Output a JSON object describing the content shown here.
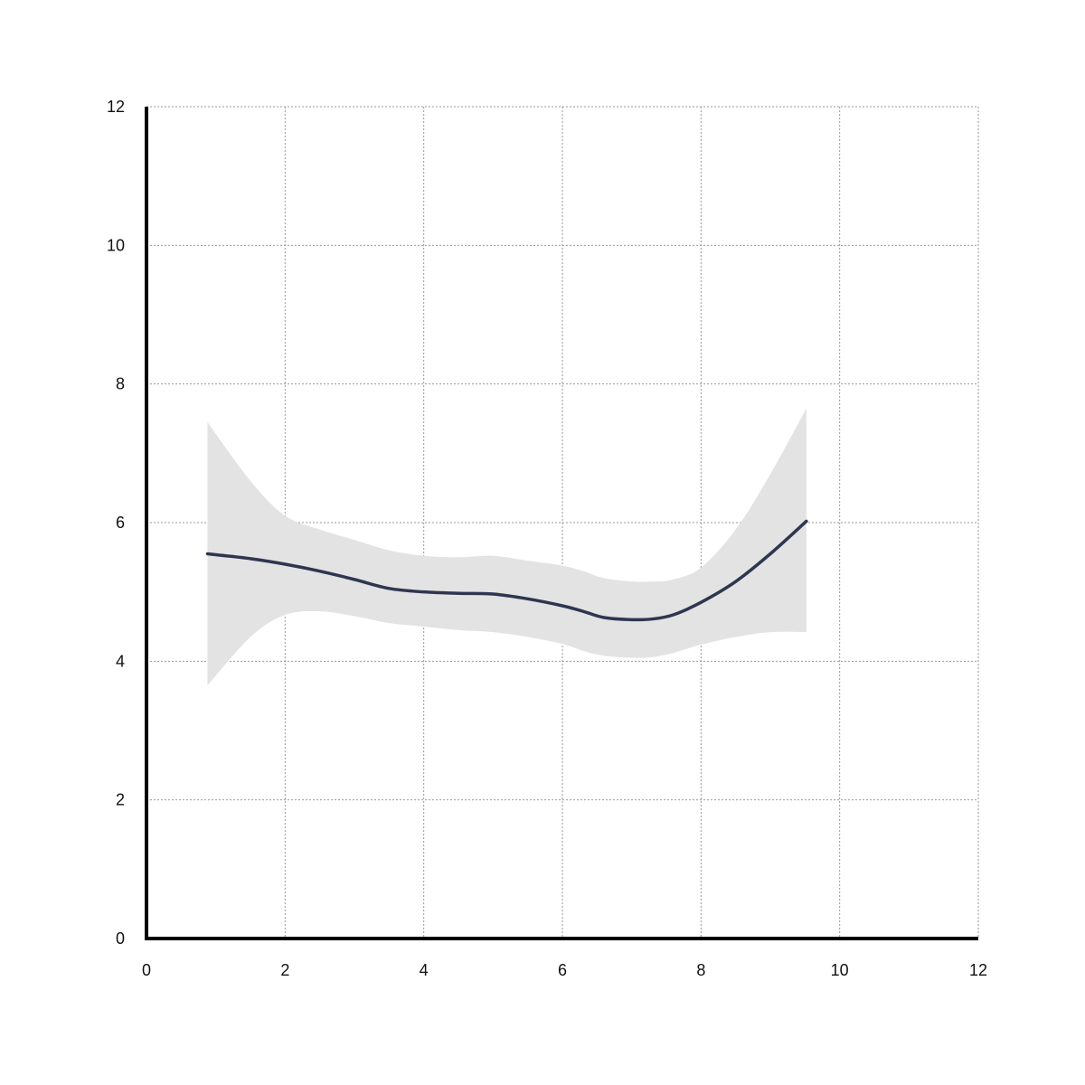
{
  "chart_data": {
    "type": "line",
    "title": "",
    "xlabel": "",
    "ylabel": "",
    "xlim": [
      0,
      12
    ],
    "ylim": [
      0,
      12
    ],
    "x_ticks": [
      "0",
      "2",
      "4",
      "6",
      "8",
      "10",
      "12"
    ],
    "y_ticks": [
      "0",
      "2",
      "4",
      "6",
      "8",
      "10",
      "12"
    ],
    "grid": true,
    "legend": "none",
    "colors": {
      "line": "#2e3650",
      "band": "#e3e3e3",
      "grid": "#9a9a9a",
      "axis": "#000000"
    },
    "series": [
      {
        "x": [
          0.88,
          1.5,
          2.0,
          2.5,
          3.0,
          3.5,
          4.0,
          4.5,
          5.0,
          5.5,
          6.0,
          6.3,
          6.6,
          7.0,
          7.3,
          7.6,
          8.0,
          8.5,
          9.0,
          9.52
        ],
        "y": [
          5.55,
          5.48,
          5.4,
          5.3,
          5.18,
          5.05,
          5.0,
          4.98,
          4.97,
          4.9,
          4.8,
          4.72,
          4.63,
          4.6,
          4.61,
          4.67,
          4.85,
          5.15,
          5.55,
          6.02
        ],
        "lower": [
          3.65,
          4.35,
          4.67,
          4.72,
          4.65,
          4.55,
          4.5,
          4.45,
          4.42,
          4.35,
          4.25,
          4.15,
          4.08,
          4.05,
          4.06,
          4.12,
          4.24,
          4.35,
          4.42,
          4.42
        ],
        "upper": [
          7.45,
          6.6,
          6.1,
          5.9,
          5.75,
          5.6,
          5.52,
          5.5,
          5.52,
          5.45,
          5.38,
          5.3,
          5.2,
          5.15,
          5.15,
          5.18,
          5.35,
          5.9,
          6.7,
          7.65
        ]
      }
    ]
  }
}
